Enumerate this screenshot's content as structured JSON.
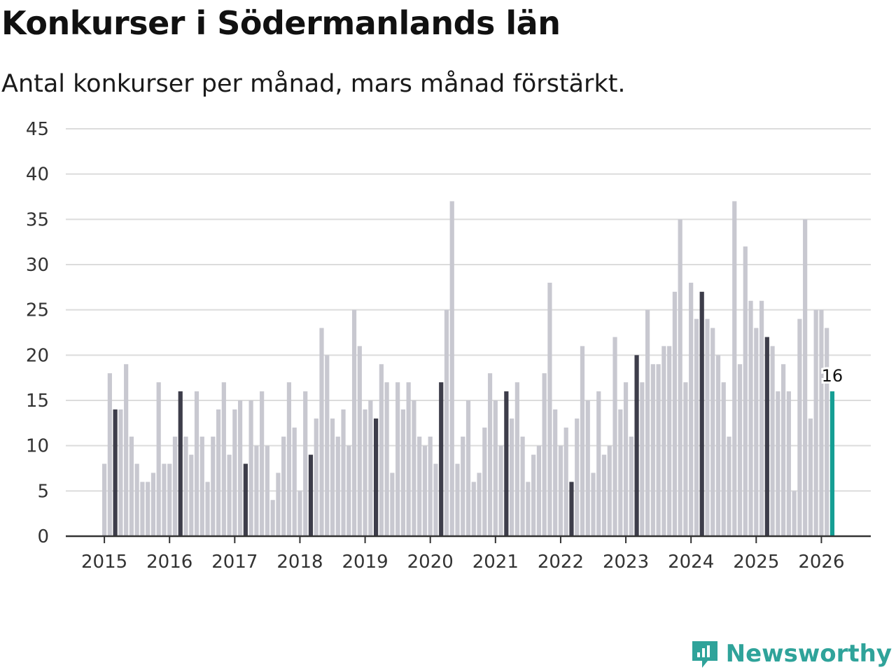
{
  "chart_data": {
    "type": "bar",
    "title": "Konkurser i Södermanlands län",
    "subtitle": "Antal konkurser per månad, mars månad förstärkt.",
    "xlabel": "",
    "ylabel": "",
    "ylim": [
      0,
      45
    ],
    "yticks": [
      0,
      5,
      10,
      15,
      20,
      25,
      30,
      35,
      40,
      45
    ],
    "year_labels": [
      "2015",
      "2016",
      "2017",
      "2018",
      "2019",
      "2020",
      "2021",
      "2022",
      "2023",
      "2024",
      "2025",
      "2026"
    ],
    "start": "2015-01",
    "values": [
      8,
      18,
      14,
      14,
      19,
      11,
      8,
      6,
      6,
      7,
      17,
      8,
      8,
      11,
      16,
      11,
      9,
      16,
      11,
      6,
      11,
      14,
      17,
      9,
      14,
      15,
      8,
      15,
      10,
      16,
      10,
      4,
      7,
      11,
      17,
      12,
      5,
      16,
      9,
      13,
      23,
      20,
      13,
      11,
      14,
      10,
      25,
      21,
      14,
      15,
      13,
      19,
      17,
      7,
      17,
      14,
      17,
      15,
      11,
      10,
      11,
      8,
      17,
      25,
      37,
      8,
      11,
      15,
      6,
      7,
      12,
      18,
      15,
      10,
      16,
      13,
      17,
      11,
      6,
      9,
      10,
      18,
      28,
      14,
      10,
      12,
      6,
      13,
      21,
      15,
      7,
      16,
      9,
      10,
      22,
      14,
      17,
      11,
      20,
      17,
      25,
      19,
      19,
      21,
      21,
      27,
      35,
      17,
      28,
      24,
      27,
      24,
      23,
      20,
      17,
      11,
      37,
      19,
      32,
      26,
      23,
      26,
      22,
      21,
      16,
      19,
      16,
      5,
      24,
      35,
      13,
      25,
      25,
      23,
      16
    ],
    "highlight_month": "mars",
    "latest_label": "16",
    "colors": {
      "regular": "#c8c8d0",
      "march": "#3d3d4a",
      "latest": "#159e94",
      "grid": "#dcdcdc",
      "axis": "#333333"
    }
  },
  "brand": {
    "name": "Newsworthy",
    "icon": "bar-chart-logo-icon",
    "color": "#2fa39a"
  }
}
